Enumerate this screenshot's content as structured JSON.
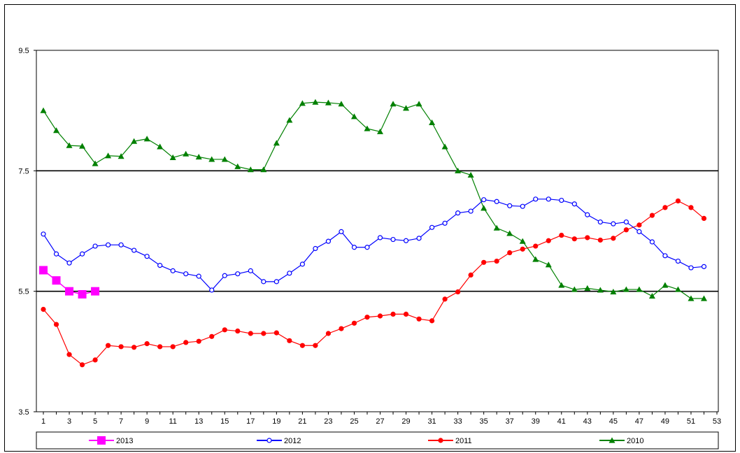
{
  "chart_data": {
    "type": "line",
    "title": "",
    "xlabel": "",
    "ylabel": "",
    "ylim": [
      3.5,
      9.5
    ],
    "y_ticks": [
      "3.5",
      "5.5",
      "7.5",
      "9.5"
    ],
    "y_reference_lines": [
      5.5,
      7.5
    ],
    "xlim": [
      1,
      53
    ],
    "x_ticks": [
      "1",
      "3",
      "5",
      "7",
      "9",
      "11",
      "13",
      "15",
      "17",
      "19",
      "21",
      "23",
      "25",
      "27",
      "29",
      "31",
      "33",
      "35",
      "37",
      "39",
      "41",
      "43",
      "45",
      "47",
      "49",
      "51",
      "53"
    ],
    "grid": false,
    "legend_position": "bottom",
    "series": [
      {
        "name": "2013",
        "color": "#ff00ff",
        "marker": "square",
        "x": [
          1,
          2,
          3,
          4,
          5
        ],
        "y": [
          5.85,
          5.68,
          5.5,
          5.45,
          5.5
        ]
      },
      {
        "name": "2012",
        "color": "#0000ff",
        "marker": "open-diamond",
        "x": [
          1,
          2,
          3,
          4,
          5,
          6,
          7,
          8,
          9,
          10,
          11,
          12,
          13,
          14,
          15,
          16,
          17,
          18,
          19,
          20,
          21,
          22,
          23,
          24,
          25,
          26,
          27,
          28,
          29,
          30,
          31,
          32,
          33,
          34,
          35,
          36,
          37,
          38,
          39,
          40,
          41,
          42,
          43,
          44,
          45,
          46,
          47,
          48,
          49,
          50,
          51,
          52
        ],
        "y": [
          6.45,
          6.12,
          5.97,
          6.12,
          6.25,
          6.27,
          6.27,
          6.18,
          6.08,
          5.93,
          5.84,
          5.79,
          5.75,
          5.52,
          5.76,
          5.79,
          5.84,
          5.66,
          5.66,
          5.8,
          5.95,
          6.21,
          6.33,
          6.49,
          6.23,
          6.23,
          6.39,
          6.36,
          6.34,
          6.38,
          6.56,
          6.63,
          6.8,
          6.83,
          7.02,
          6.99,
          6.92,
          6.91,
          7.03,
          7.03,
          7.01,
          6.95,
          6.77,
          6.65,
          6.62,
          6.65,
          6.49,
          6.32,
          6.09,
          6.0,
          5.89,
          5.91
        ]
      },
      {
        "name": "2011",
        "color": "#ff0000",
        "marker": "dot",
        "x": [
          1,
          2,
          3,
          4,
          5,
          6,
          7,
          8,
          9,
          10,
          11,
          12,
          13,
          14,
          15,
          16,
          17,
          18,
          19,
          20,
          21,
          22,
          23,
          24,
          25,
          26,
          27,
          28,
          29,
          30,
          31,
          32,
          33,
          34,
          35,
          36,
          37,
          38,
          39,
          40,
          41,
          42,
          43,
          44,
          45,
          46,
          47,
          48,
          49,
          50,
          51,
          52
        ],
        "y": [
          5.2,
          4.95,
          4.45,
          4.28,
          4.36,
          4.6,
          4.58,
          4.57,
          4.63,
          4.58,
          4.58,
          4.65,
          4.67,
          4.75,
          4.86,
          4.84,
          4.8,
          4.8,
          4.81,
          4.68,
          4.6,
          4.6,
          4.8,
          4.88,
          4.97,
          5.07,
          5.09,
          5.12,
          5.12,
          5.04,
          5.01,
          5.37,
          5.49,
          5.77,
          5.98,
          6.0,
          6.14,
          6.2,
          6.25,
          6.34,
          6.43,
          6.37,
          6.39,
          6.35,
          6.38,
          6.52,
          6.6,
          6.76,
          6.89,
          7.0,
          6.89,
          6.71
        ]
      },
      {
        "name": "2010",
        "color": "#008000",
        "marker": "triangle",
        "x": [
          1,
          2,
          3,
          4,
          5,
          6,
          7,
          8,
          9,
          10,
          11,
          12,
          13,
          14,
          15,
          16,
          17,
          18,
          19,
          20,
          21,
          22,
          23,
          24,
          25,
          26,
          27,
          28,
          29,
          30,
          31,
          32,
          33,
          34,
          35,
          36,
          37,
          38,
          39,
          40,
          41,
          42,
          43,
          44,
          45,
          46,
          47,
          48,
          49,
          50,
          51,
          52
        ],
        "y": [
          8.5,
          8.17,
          7.92,
          7.91,
          7.62,
          7.75,
          7.74,
          7.99,
          8.03,
          7.9,
          7.72,
          7.78,
          7.73,
          7.69,
          7.69,
          7.57,
          7.52,
          7.52,
          7.96,
          8.34,
          8.62,
          8.64,
          8.63,
          8.61,
          8.4,
          8.2,
          8.15,
          8.61,
          8.54,
          8.61,
          8.3,
          7.9,
          7.5,
          7.43,
          6.88,
          6.55,
          6.46,
          6.33,
          6.03,
          5.94,
          5.6,
          5.53,
          5.55,
          5.52,
          5.49,
          5.53,
          5.53,
          5.42,
          5.6,
          5.53,
          5.38,
          5.38
        ]
      }
    ]
  }
}
